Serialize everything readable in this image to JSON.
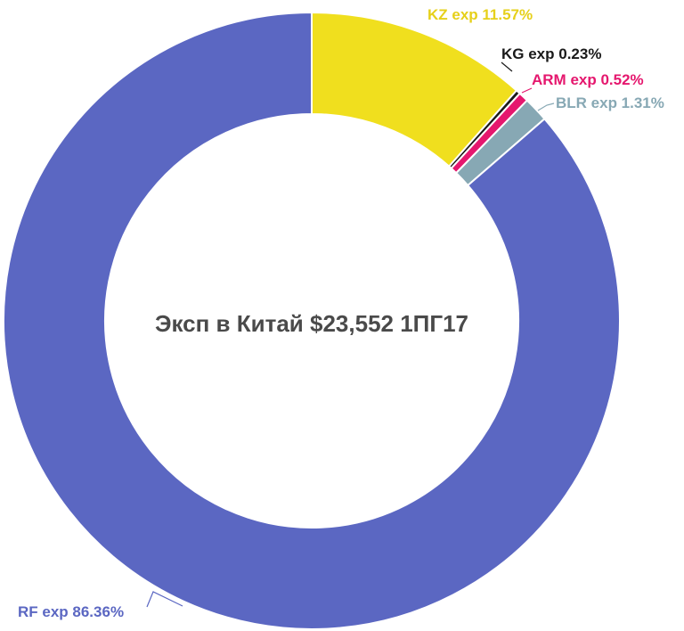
{
  "chart_data": {
    "type": "pie",
    "donut": true,
    "title": "Эксп в Китай $23,552 1ПГ17",
    "slices": [
      {
        "label": "KZ exp 11.57%",
        "value": 11.57,
        "color": "#f0df1e",
        "label_color": "#e6d01a"
      },
      {
        "label": "KG exp 0.23%",
        "value": 0.23,
        "color": "#1a1a1a",
        "label_color": "#1a1a1a"
      },
      {
        "label": "ARM exp 0.52%",
        "value": 0.52,
        "color": "#e5176e",
        "label_color": "#e5176e"
      },
      {
        "label": "BLR exp 1.31%",
        "value": 1.31,
        "color": "#87a8b4",
        "label_color": "#87a8b4"
      },
      {
        "label": "RF exp 86.36%",
        "value": 86.36,
        "color": "#5b67c2",
        "label_color": "#5b67c2"
      }
    ]
  }
}
